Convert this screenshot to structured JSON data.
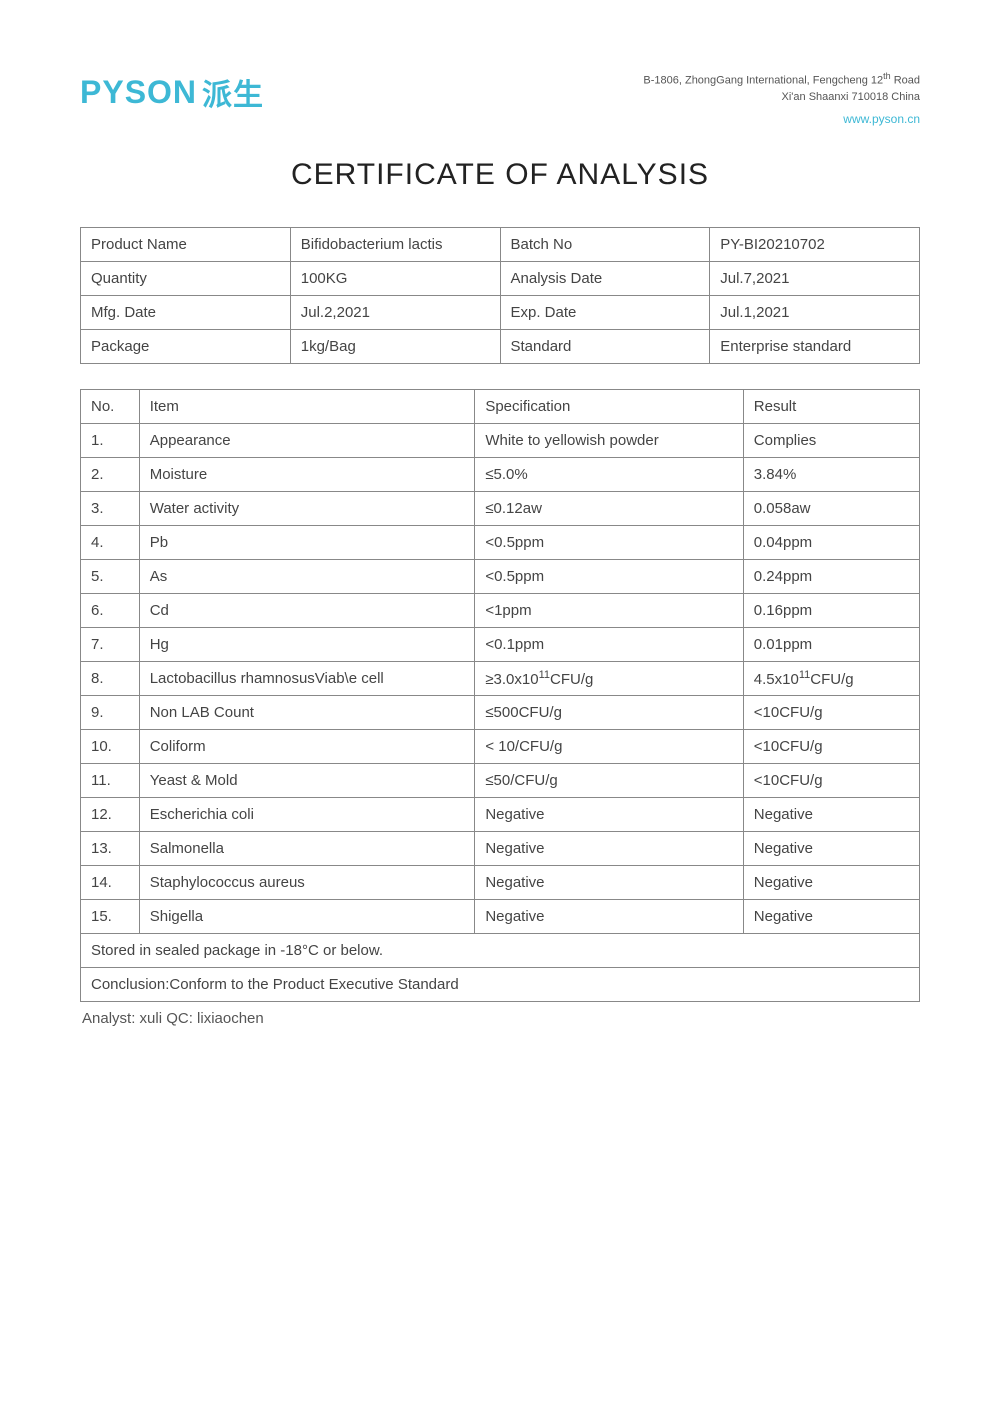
{
  "header": {
    "logo_en": "PYSON",
    "logo_cn": "派生",
    "address_line1_pre": "B-1806, ZhongGang International, Fengcheng 12",
    "address_line1_th": "th",
    "address_line1_post": " Road",
    "address_line2": "Xi'an Shaanxi 710018 China",
    "website": "www.pyson.cn"
  },
  "title": "CERTIFICATE OF ANALYSIS",
  "info": {
    "rows": [
      {
        "label1": "Product  Name",
        "value1": "Bifidobacterium lactis",
        "label2": "Batch No",
        "value2": "PY-BI20210702"
      },
      {
        "label1": "Quantity",
        "value1": "100KG",
        "label2": "Analysis Date",
        "value2": "Jul.7,2021"
      },
      {
        "label1": "Mfg. Date",
        "value1": "Jul.2,2021",
        "label2": "Exp. Date",
        "value2": "Jul.1,2021"
      },
      {
        "label1": "Package",
        "value1": "1kg/Bag",
        "label2": "Standard",
        "value2": "Enterprise standard"
      }
    ]
  },
  "analysis": {
    "header": {
      "no": "No.",
      "item": "Item",
      "spec": "Specification",
      "result": "Result"
    },
    "rows": [
      {
        "no": "1.",
        "item": "Appearance",
        "spec": "White to yellowish powder",
        "result": "Complies"
      },
      {
        "no": "2.",
        "item": "Moisture",
        "spec": "≤5.0%",
        "result": "3.84%"
      },
      {
        "no": "3.",
        "item": "Water activity",
        "spec": "≤0.12aw",
        "result": "0.058aw"
      },
      {
        "no": "4.",
        "item": "Pb",
        "spec": "<0.5ppm",
        "result": "0.04ppm"
      },
      {
        "no": "5.",
        "item": "As",
        "spec": "<0.5ppm",
        "result": "0.24ppm"
      },
      {
        "no": "6.",
        "item": "Cd",
        "spec": "<1ppm",
        "result": "0.16ppm"
      },
      {
        "no": "7.",
        "item": "Hg",
        "spec": "<0.1ppm",
        "result": "0.01ppm"
      },
      {
        "no": "8.",
        "item": "Lactobacillus rhamnosusViab\\e cell",
        "spec_pre": "≥3.0x10",
        "spec_sup": "11",
        "spec_post": "CFU/g",
        "result_pre": "4.5x10",
        "result_sup": "11",
        "result_post": "CFU/g",
        "has_sup": true
      },
      {
        "no": "9.",
        "item": " Non LAB Count",
        "spec": "≤500CFU/g",
        "result": "<10CFU/g"
      },
      {
        "no": "10.",
        "item": " Coliform",
        "spec": "< 10/CFU/g",
        "result": "<10CFU/g"
      },
      {
        "no": "11.",
        "item": "Yeast & Mold",
        "spec": "≤50/CFU/g",
        "result": "<10CFU/g"
      },
      {
        "no": "12.",
        "item": "Escherichia coli",
        "spec": "Negative",
        "result": "Negative"
      },
      {
        "no": "13.",
        "item": "Salmonella",
        "spec": "Negative",
        "result": "Negative"
      },
      {
        "no": "14.",
        "item": "Staphylococcus aureus",
        "spec": "Negative",
        "result": "Negative"
      },
      {
        "no": "15.",
        "item": "Shigella",
        "spec": "Negative",
        "result": "Negative"
      }
    ],
    "storage": "Stored in sealed package in -18°C or below.",
    "conclusion": "Conclusion:Conform to the Product Executive Standard"
  },
  "footer": "Analyst: xuli QC: lixiaochen"
}
